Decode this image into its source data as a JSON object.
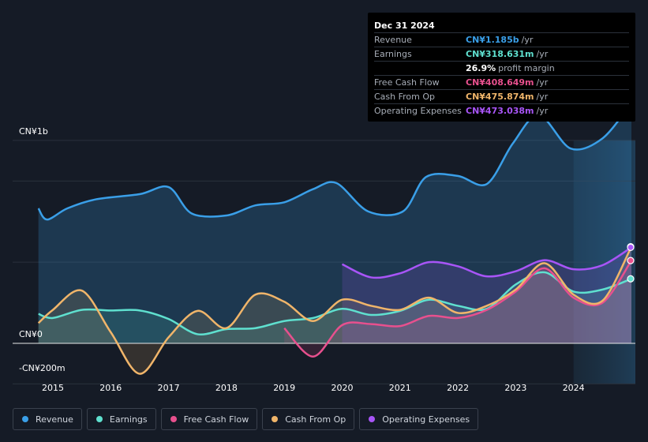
{
  "tooltip": {
    "date": "Dec 31 2024",
    "rows": [
      {
        "label": "Revenue",
        "value": "CN¥1.185b",
        "unit": "/yr",
        "color": "#3a9fe8"
      },
      {
        "label": "Earnings",
        "value": "CN¥318.631m",
        "unit": "/yr",
        "color": "#5fe0cf"
      },
      {
        "label": "",
        "value": "26.9%",
        "unit": "profit margin",
        "color": "#ffffff"
      },
      {
        "label": "Free Cash Flow",
        "value": "CN¥408.649m",
        "unit": "/yr",
        "color": "#e8508e"
      },
      {
        "label": "Cash From Op",
        "value": "CN¥475.874m",
        "unit": "/yr",
        "color": "#f0b56a"
      },
      {
        "label": "Operating Expenses",
        "value": "CN¥473.038m",
        "unit": "/yr",
        "color": "#a855f7"
      }
    ]
  },
  "chart_data": {
    "type": "area",
    "y_unit": "CN¥ millions",
    "ylim": [
      -200,
      1200
    ],
    "y_tick_labels": [
      "CN¥1b",
      "CN¥0",
      "-CN¥200m"
    ],
    "x_tick_labels": [
      "2015",
      "2016",
      "2017",
      "2018",
      "2019",
      "2020",
      "2021",
      "2022",
      "2023",
      "2024"
    ],
    "series": [
      {
        "name": "Revenue",
        "color": "#3a9fe8",
        "points": [
          [
            2014.75,
            665
          ],
          [
            2014.9,
            610
          ],
          [
            2015.25,
            665
          ],
          [
            2015.75,
            710
          ],
          [
            2016.5,
            735
          ],
          [
            2017.0,
            770
          ],
          [
            2017.4,
            640
          ],
          [
            2018.0,
            630
          ],
          [
            2018.5,
            680
          ],
          [
            2019.0,
            695
          ],
          [
            2019.5,
            760
          ],
          [
            2019.9,
            790
          ],
          [
            2020.45,
            650
          ],
          [
            2021.05,
            650
          ],
          [
            2021.45,
            820
          ],
          [
            2022.0,
            825
          ],
          [
            2022.5,
            785
          ],
          [
            2022.95,
            985
          ],
          [
            2023.4,
            1125
          ],
          [
            2023.95,
            960
          ],
          [
            2024.5,
            1010
          ],
          [
            2025.0,
            1185
          ]
        ]
      },
      {
        "name": "Earnings",
        "color": "#5fe0cf",
        "points": [
          [
            2014.75,
            145
          ],
          [
            2015.0,
            125
          ],
          [
            2015.5,
            165
          ],
          [
            2016.0,
            162
          ],
          [
            2016.5,
            162
          ],
          [
            2017.0,
            120
          ],
          [
            2017.5,
            45
          ],
          [
            2018.0,
            70
          ],
          [
            2018.5,
            75
          ],
          [
            2019.0,
            110
          ],
          [
            2019.5,
            125
          ],
          [
            2020.0,
            170
          ],
          [
            2020.5,
            140
          ],
          [
            2021.0,
            160
          ],
          [
            2021.5,
            215
          ],
          [
            2022.0,
            185
          ],
          [
            2022.5,
            170
          ],
          [
            2023.0,
            290
          ],
          [
            2023.5,
            350
          ],
          [
            2024.0,
            255
          ],
          [
            2024.5,
            265
          ],
          [
            2025.0,
            318
          ]
        ]
      },
      {
        "name": "Free Cash Flow",
        "color": "#e8508e",
        "points": [
          [
            2019.0,
            75
          ],
          [
            2019.5,
            -65
          ],
          [
            2020.0,
            90
          ],
          [
            2020.5,
            95
          ],
          [
            2021.0,
            85
          ],
          [
            2021.5,
            135
          ],
          [
            2022.0,
            125
          ],
          [
            2022.5,
            165
          ],
          [
            2023.0,
            255
          ],
          [
            2023.5,
            370
          ],
          [
            2024.0,
            225
          ],
          [
            2024.5,
            200
          ],
          [
            2025.0,
            408
          ]
        ]
      },
      {
        "name": "Cash From Op",
        "color": "#f0b56a",
        "points": [
          [
            2014.75,
            100
          ],
          [
            2015.0,
            165
          ],
          [
            2015.5,
            260
          ],
          [
            2016.0,
            55
          ],
          [
            2016.5,
            -150
          ],
          [
            2017.0,
            30
          ],
          [
            2017.5,
            160
          ],
          [
            2018.0,
            75
          ],
          [
            2018.5,
            240
          ],
          [
            2019.0,
            205
          ],
          [
            2019.5,
            110
          ],
          [
            2020.0,
            215
          ],
          [
            2020.5,
            185
          ],
          [
            2021.0,
            165
          ],
          [
            2021.5,
            225
          ],
          [
            2022.0,
            150
          ],
          [
            2022.5,
            185
          ],
          [
            2023.0,
            265
          ],
          [
            2023.5,
            395
          ],
          [
            2024.0,
            240
          ],
          [
            2024.5,
            210
          ],
          [
            2025.0,
            476
          ]
        ]
      },
      {
        "name": "Operating Expenses",
        "color": "#a855f7",
        "points": [
          [
            2020.0,
            390
          ],
          [
            2020.5,
            325
          ],
          [
            2021.0,
            345
          ],
          [
            2021.5,
            400
          ],
          [
            2022.0,
            380
          ],
          [
            2022.5,
            330
          ],
          [
            2023.0,
            355
          ],
          [
            2023.5,
            410
          ],
          [
            2024.0,
            365
          ],
          [
            2024.5,
            385
          ],
          [
            2025.0,
            473
          ]
        ]
      }
    ],
    "forecast_region_start": 2024.0,
    "legend": [
      "Revenue",
      "Earnings",
      "Free Cash Flow",
      "Cash From Op",
      "Operating Expenses"
    ]
  }
}
